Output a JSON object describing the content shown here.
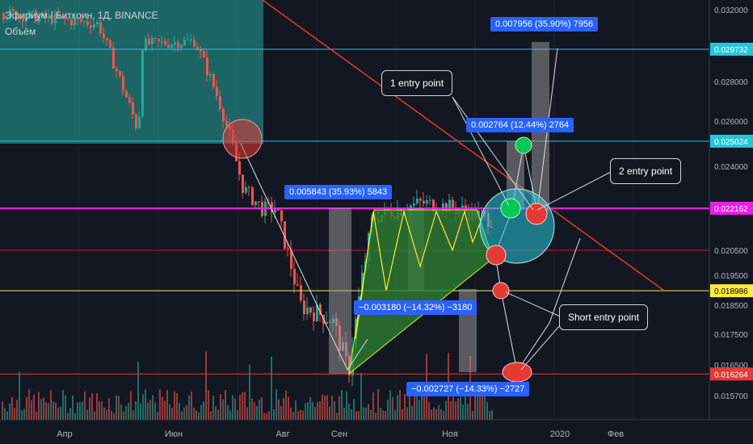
{
  "header": {
    "title": "Эфириум / Биткоин, 1Д, BINANCE",
    "volume_label": "Объём"
  },
  "chart_data": {
    "type": "candlestick",
    "ylim": [
      0.0152,
      0.0323
    ],
    "y_ticks": [
      "0.032000",
      "0.028000",
      "0.026000",
      "0.024000",
      "0.020500",
      "0.019500",
      "0.018500",
      "0.017500",
      "0.016500",
      "0.015700"
    ],
    "x_ticks": [
      "Апр",
      "Июн",
      "Авг",
      "Сен",
      "Ноя",
      "2020",
      "Фев"
    ],
    "levels": [
      {
        "value": "0.029732",
        "color": "#26c6da"
      },
      {
        "value": "0.025024",
        "color": "#26c6da"
      },
      {
        "value": "0.022162",
        "color": "#e91ee9"
      },
      {
        "value": "0.018986",
        "color": "#ffeb3b"
      },
      {
        "value": "0.016264",
        "color": "#e53935"
      }
    ],
    "annotations": {
      "measure_rise_1": "0.005843 (35.93%) 5843",
      "measure_drop_1": "−0.003180 (−14.32%) −3180",
      "measure_drop_2": "−0.002727 (−14.33%) −2727",
      "measure_rise_2": "0.002764 (12.44%) 2764",
      "measure_rise_3": "0.007956 (35.90%) 7956",
      "callout_1": "1 entry point",
      "callout_2": "2 entry point",
      "callout_3": "Short entry point"
    }
  },
  "colors": {
    "bg": "#131722",
    "up": "#26a69a",
    "down": "#ef5350",
    "trend": "#e53935",
    "accent": "#2962ff"
  }
}
